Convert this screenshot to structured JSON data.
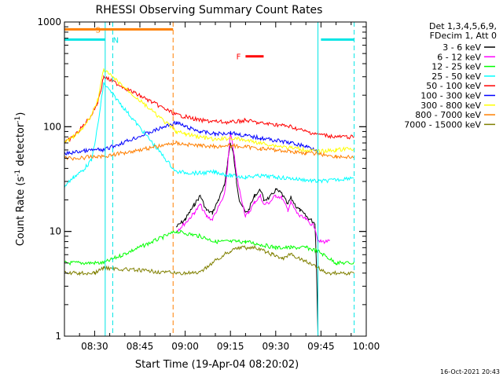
{
  "chart_data": {
    "type": "line",
    "title": "RHESSI Observing Summary Count Rates",
    "xlabel": "Start Time (19-Apr-04 08:20:02)",
    "ylabel_prefix": "Count Rate (s",
    "ylabel_sup": "-1",
    "ylabel_mid": " detector",
    "ylabel_sup2": "-1",
    "ylabel_suffix": ")",
    "y_scale": "log",
    "ylim": [
      1,
      1000
    ],
    "x_unit": "minutes of day",
    "xlim": [
      500,
      600
    ],
    "x_ticks": [
      {
        "value": 510,
        "label": "08:30"
      },
      {
        "value": 525,
        "label": "08:45"
      },
      {
        "value": 540,
        "label": "09:00"
      },
      {
        "value": 555,
        "label": "09:15"
      },
      {
        "value": 570,
        "label": "09:30"
      },
      {
        "value": 585,
        "label": "09:45"
      },
      {
        "value": 600,
        "label": "10:00"
      }
    ],
    "y_ticks": [
      {
        "value": 1,
        "label": "1"
      },
      {
        "value": 10,
        "label": "10"
      },
      {
        "value": 100,
        "label": "100"
      },
      {
        "value": 1000,
        "label": "1000"
      }
    ],
    "legend_header": [
      "Det 1,3,4,5,6,9,",
      "FDecim 1, Att 0"
    ],
    "legend_position": "top-right, outside plot",
    "timestamp": "16-Oct-2021 20:43",
    "gaps": [
      [
        513.5,
        537
      ]
    ],
    "flags": [
      {
        "label": "S",
        "color": "#ff7f00",
        "y": 850,
        "segments": [
          [
            500,
            513.5
          ],
          [
            513.5,
            536
          ]
        ],
        "show_label_at": 513
      }
    ],
    "night_markers": [
      {
        "label": "N",
        "color": "#00e5e5",
        "y": 680,
        "segments": [
          [
            500,
            513.5
          ],
          [
            585,
            596
          ]
        ],
        "label_at": 515
      }
    ],
    "flare_marker": {
      "label": "F",
      "color": "#ff0000",
      "x_range": [
        560,
        566
      ],
      "y": 470
    },
    "vlines": [
      {
        "x": 513.5,
        "color": "#00e5e5",
        "style": "solid"
      },
      {
        "x": 516,
        "color": "#00e5e5",
        "style": "dashed"
      },
      {
        "x": 536,
        "color": "#ff7f00",
        "style": "dashed"
      },
      {
        "x": 584,
        "color": "#00e5e5",
        "style": "solid"
      },
      {
        "x": 596,
        "color": "#00e5e5",
        "style": "dashed"
      }
    ],
    "series": [
      {
        "name": "3 - 6 keV",
        "color": "#000000",
        "points": [
          [
            537,
            11
          ],
          [
            540,
            13
          ],
          [
            543,
            18
          ],
          [
            545,
            22
          ],
          [
            547,
            16
          ],
          [
            549,
            15
          ],
          [
            551,
            20
          ],
          [
            553,
            27
          ],
          [
            554,
            45
          ],
          [
            555,
            70
          ],
          [
            556,
            55
          ],
          [
            557,
            30
          ],
          [
            558,
            20
          ],
          [
            560,
            15
          ],
          [
            561,
            16
          ],
          [
            563,
            22
          ],
          [
            565,
            25
          ],
          [
            566,
            20
          ],
          [
            568,
            21
          ],
          [
            570,
            25
          ],
          [
            572,
            23
          ],
          [
            574,
            18
          ],
          [
            575,
            21
          ],
          [
            577,
            17
          ],
          [
            578,
            16
          ],
          [
            580,
            14
          ],
          [
            583,
            12
          ],
          [
            583.5,
            5
          ],
          [
            584,
            1
          ]
        ]
      },
      {
        "name": "6 - 12 keV",
        "color": "#ff00ff",
        "points": [
          [
            537,
            10
          ],
          [
            540,
            12
          ],
          [
            543,
            15
          ],
          [
            545,
            18
          ],
          [
            547,
            14
          ],
          [
            549,
            13
          ],
          [
            551,
            17
          ],
          [
            553,
            22
          ],
          [
            554,
            40
          ],
          [
            555,
            85
          ],
          [
            556,
            60
          ],
          [
            557,
            35
          ],
          [
            558,
            25
          ],
          [
            560,
            14
          ],
          [
            561,
            15
          ],
          [
            563,
            19
          ],
          [
            565,
            22
          ],
          [
            566,
            18
          ],
          [
            568,
            19
          ],
          [
            570,
            22
          ],
          [
            572,
            21
          ],
          [
            574,
            16
          ],
          [
            575,
            19
          ],
          [
            577,
            15
          ],
          [
            578,
            14
          ],
          [
            580,
            13
          ],
          [
            583,
            11
          ],
          [
            584,
            8
          ],
          [
            587,
            8
          ],
          [
            588,
            8
          ]
        ]
      },
      {
        "name": "12 - 25 keV",
        "color": "#00ff00",
        "points": [
          [
            500,
            5
          ],
          [
            513,
            5
          ],
          [
            537,
            10
          ],
          [
            545,
            9
          ],
          [
            550,
            8
          ],
          [
            555,
            8
          ],
          [
            560,
            8
          ],
          [
            565,
            7.5
          ],
          [
            570,
            7
          ],
          [
            575,
            7
          ],
          [
            580,
            7
          ],
          [
            584,
            6.5
          ],
          [
            590,
            5
          ],
          [
            596,
            5
          ]
        ]
      },
      {
        "name": "25 - 50 keV",
        "color": "#00ffff",
        "points": [
          [
            500,
            27
          ],
          [
            503,
            33
          ],
          [
            506,
            38
          ],
          [
            509,
            48
          ],
          [
            511,
            100
          ],
          [
            512,
            160
          ],
          [
            513,
            260
          ],
          [
            537,
            37
          ],
          [
            545,
            36
          ],
          [
            550,
            37
          ],
          [
            555,
            34
          ],
          [
            560,
            33
          ],
          [
            565,
            34
          ],
          [
            570,
            33
          ],
          [
            575,
            32
          ],
          [
            580,
            31
          ],
          [
            584,
            30
          ],
          [
            590,
            31
          ],
          [
            596,
            33
          ]
        ]
      },
      {
        "name": "50 - 100 keV",
        "color": "#ff0000",
        "points": [
          [
            500,
            70
          ],
          [
            503,
            80
          ],
          [
            506,
            100
          ],
          [
            509,
            130
          ],
          [
            511,
            170
          ],
          [
            512,
            220
          ],
          [
            513,
            300
          ],
          [
            537,
            130
          ],
          [
            540,
            125
          ],
          [
            545,
            115
          ],
          [
            550,
            112
          ],
          [
            555,
            110
          ],
          [
            560,
            115
          ],
          [
            565,
            108
          ],
          [
            570,
            105
          ],
          [
            575,
            100
          ],
          [
            580,
            90
          ],
          [
            584,
            85
          ],
          [
            590,
            80
          ],
          [
            596,
            80
          ]
        ]
      },
      {
        "name": "100 - 300 keV",
        "color": "#0000ff",
        "points": [
          [
            500,
            55
          ],
          [
            505,
            58
          ],
          [
            510,
            60
          ],
          [
            513,
            60
          ],
          [
            537,
            110
          ],
          [
            540,
            100
          ],
          [
            545,
            90
          ],
          [
            550,
            85
          ],
          [
            555,
            88
          ],
          [
            560,
            82
          ],
          [
            565,
            78
          ],
          [
            570,
            74
          ],
          [
            575,
            70
          ],
          [
            580,
            65
          ],
          [
            584,
            60
          ]
        ]
      },
      {
        "name": "300 - 800 keV",
        "color": "#ffff00",
        "points": [
          [
            500,
            70
          ],
          [
            503,
            80
          ],
          [
            506,
            95
          ],
          [
            509,
            130
          ],
          [
            511,
            180
          ],
          [
            512,
            250
          ],
          [
            513,
            350
          ],
          [
            537,
            90
          ],
          [
            540,
            85
          ],
          [
            545,
            80
          ],
          [
            550,
            75
          ],
          [
            555,
            78
          ],
          [
            560,
            74
          ],
          [
            565,
            70
          ],
          [
            570,
            66
          ],
          [
            575,
            63
          ],
          [
            580,
            60
          ],
          [
            584,
            58
          ],
          [
            590,
            60
          ],
          [
            596,
            62
          ]
        ]
      },
      {
        "name": "800 - 7000 keV",
        "color": "#ff7f00",
        "points": [
          [
            500,
            50
          ],
          [
            505,
            50
          ],
          [
            510,
            52
          ],
          [
            513,
            52
          ],
          [
            537,
            70
          ],
          [
            540,
            68
          ],
          [
            545,
            66
          ],
          [
            550,
            65
          ],
          [
            555,
            66
          ],
          [
            560,
            64
          ],
          [
            565,
            62
          ],
          [
            570,
            60
          ],
          [
            575,
            58
          ],
          [
            580,
            56
          ],
          [
            584,
            55
          ],
          [
            590,
            52
          ],
          [
            596,
            51
          ]
        ]
      },
      {
        "name": "7000 - 15000 keV",
        "color": "#808000",
        "points": [
          [
            500,
            4
          ],
          [
            505,
            4
          ],
          [
            510,
            4
          ],
          [
            513,
            4.5
          ],
          [
            537,
            4
          ],
          [
            540,
            4
          ],
          [
            545,
            4
          ],
          [
            547,
            4.5
          ],
          [
            549,
            5
          ],
          [
            551,
            5.5
          ],
          [
            553,
            6
          ],
          [
            555,
            6.5
          ],
          [
            557,
            7
          ],
          [
            560,
            7
          ],
          [
            563,
            7
          ],
          [
            566,
            6.5
          ],
          [
            569,
            6
          ],
          [
            572,
            5.5
          ],
          [
            575,
            6
          ],
          [
            578,
            5.5
          ],
          [
            581,
            5
          ],
          [
            584,
            4.5
          ],
          [
            587,
            4
          ],
          [
            590,
            4
          ],
          [
            596,
            4
          ]
        ]
      }
    ]
  }
}
